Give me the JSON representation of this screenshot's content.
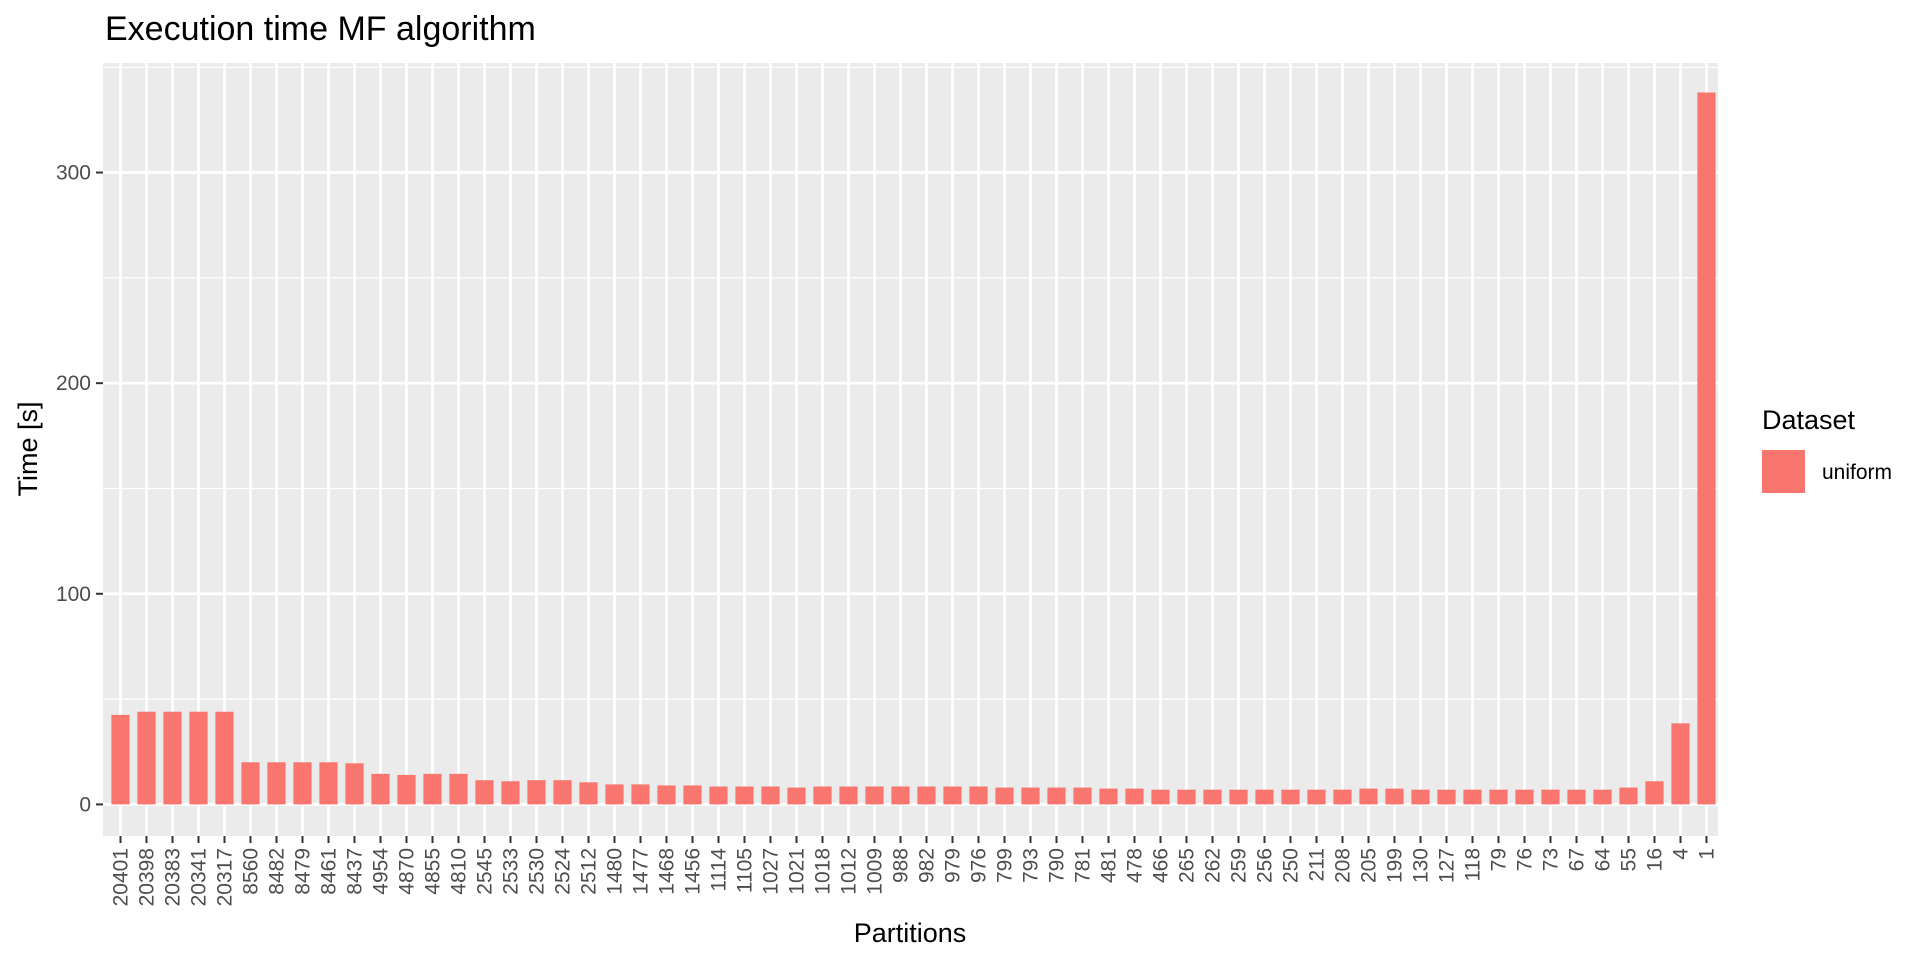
{
  "chart_data": {
    "type": "bar",
    "title": "Execution time MF algorithm",
    "xlabel": "Partitions",
    "ylabel": "Time [s]",
    "ylim": [
      -15,
      352
    ],
    "yticks": [
      0,
      100,
      200,
      300
    ],
    "grid": true,
    "legend": {
      "title": "Dataset",
      "position": "right"
    },
    "categories": [
      "20401",
      "20398",
      "20383",
      "20341",
      "20317",
      "8560",
      "8482",
      "8479",
      "8461",
      "8437",
      "4954",
      "4870",
      "4855",
      "4810",
      "2545",
      "2533",
      "2530",
      "2524",
      "2512",
      "1480",
      "1477",
      "1468",
      "1456",
      "1114",
      "1105",
      "1027",
      "1021",
      "1018",
      "1012",
      "1009",
      "988",
      "982",
      "979",
      "976",
      "799",
      "793",
      "790",
      "781",
      "481",
      "478",
      "466",
      "265",
      "262",
      "259",
      "256",
      "250",
      "211",
      "208",
      "205",
      "199",
      "130",
      "127",
      "118",
      "79",
      "76",
      "73",
      "67",
      "64",
      "55",
      "16",
      "4",
      "1"
    ],
    "series": [
      {
        "name": "uniform",
        "color": "#F8766D",
        "values": [
          42.5,
          44,
          44,
          44,
          44,
          20,
          20,
          20,
          20,
          19.5,
          14.5,
          14,
          14.5,
          14.5,
          11.5,
          11,
          11.5,
          11.5,
          10.5,
          9.5,
          9.5,
          9,
          9,
          8.5,
          8.5,
          8.5,
          8,
          8.5,
          8.5,
          8.5,
          8.5,
          8.5,
          8.5,
          8.5,
          8,
          8,
          8,
          8,
          7.5,
          7.5,
          7,
          7,
          7,
          7,
          7,
          7,
          7,
          7,
          7.5,
          7.5,
          7,
          7,
          7,
          7,
          7,
          7,
          7,
          7,
          8,
          11,
          38.5,
          338
        ]
      }
    ]
  }
}
